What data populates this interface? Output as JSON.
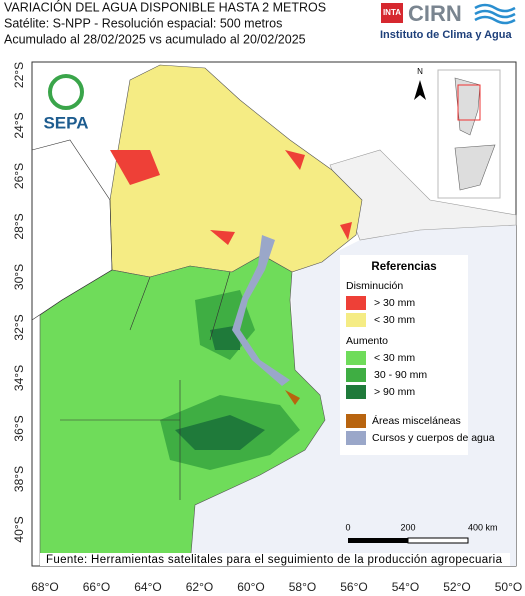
{
  "header": {
    "title_lines": [
      "VARIACIÓN DEL AGUA DISPONIBLE HASTA 2 METROS",
      "Satélite: S-NPP - Resolución espacial: 500 metros",
      "Acumulado al 28/02/2025 vs acumulado al 20/02/2025"
    ],
    "logo": {
      "inta": "INTA",
      "cirn": "CIRN",
      "institute": "Instituto de Clima y Agua"
    }
  },
  "map": {
    "sepa": "SEPA",
    "north": "N",
    "lat_labels": [
      "22°S",
      "24°S",
      "26°S",
      "28°S",
      "30°S",
      "32°S",
      "34°S",
      "36°S",
      "38°S",
      "40°S"
    ],
    "lon_labels": [
      "68°O",
      "66°O",
      "64°O",
      "62°O",
      "60°O",
      "58°O",
      "56°O",
      "54°O",
      "52°O",
      "50°O"
    ]
  },
  "legend": {
    "title": "Referencias",
    "groups": [
      {
        "title": "Disminución",
        "items": [
          {
            "label": "> 30 mm",
            "color": "#ee4037"
          },
          {
            "label": "< 30 mm",
            "color": "#f5ec84"
          }
        ]
      },
      {
        "title": "Aumento",
        "items": [
          {
            "label": "< 30 mm",
            "color": "#6fdc5a"
          },
          {
            "label": "30 - 90 mm",
            "color": "#3fae43"
          },
          {
            "label": "> 90 mm",
            "color": "#1f7a3a"
          }
        ]
      }
    ],
    "extra_items": [
      {
        "label": "Áreas misceláneas",
        "color": "#b8640f"
      },
      {
        "label": "Cursos y cuerpos de agua",
        "color": "#9aa7c9"
      }
    ]
  },
  "scale": {
    "labels": [
      "0",
      "200",
      "400 km"
    ]
  },
  "footer": {
    "source": "Fuente: Herramientas satelitales para el seguimiento de la producción agropecuaria"
  }
}
